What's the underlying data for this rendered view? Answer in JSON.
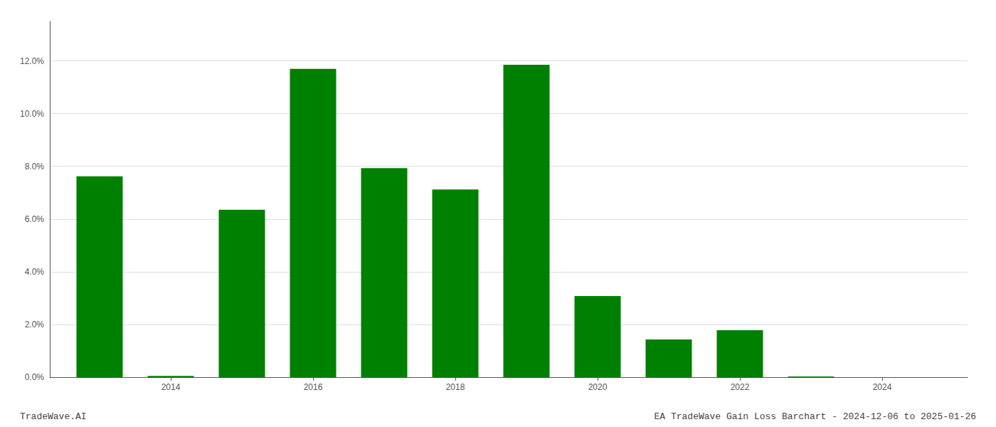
{
  "chart_data": {
    "type": "bar",
    "x": [
      2013,
      2014,
      2015,
      2016,
      2017,
      2018,
      2019,
      2020,
      2021,
      2022,
      2023,
      2024
    ],
    "values": [
      0.0762,
      0.0005,
      0.0635,
      0.117,
      0.0793,
      0.0712,
      0.1185,
      0.0308,
      0.0143,
      0.0178,
      0.0003,
      0.0
    ],
    "color": "#008000",
    "xlim": [
      2012.3,
      2025.2
    ],
    "xticks": [
      2014,
      2016,
      2018,
      2020,
      2022,
      2024
    ],
    "ylim": [
      0,
      0.135
    ],
    "yticks": [
      {
        "value": 0.0,
        "label": "0.0%"
      },
      {
        "value": 0.02,
        "label": "2.0%"
      },
      {
        "value": 0.04,
        "label": "4.0%"
      },
      {
        "value": 0.06,
        "label": "6.0%"
      },
      {
        "value": 0.08,
        "label": "8.0%"
      },
      {
        "value": 0.1,
        "label": "10.0%"
      },
      {
        "value": 0.12,
        "label": "12.0%"
      }
    ],
    "grid": true,
    "annotations": [
      "TradeWave.AI",
      "EA TradeWave Gain Loss Barchart - 2024-12-06 to 2025-01-26"
    ]
  }
}
